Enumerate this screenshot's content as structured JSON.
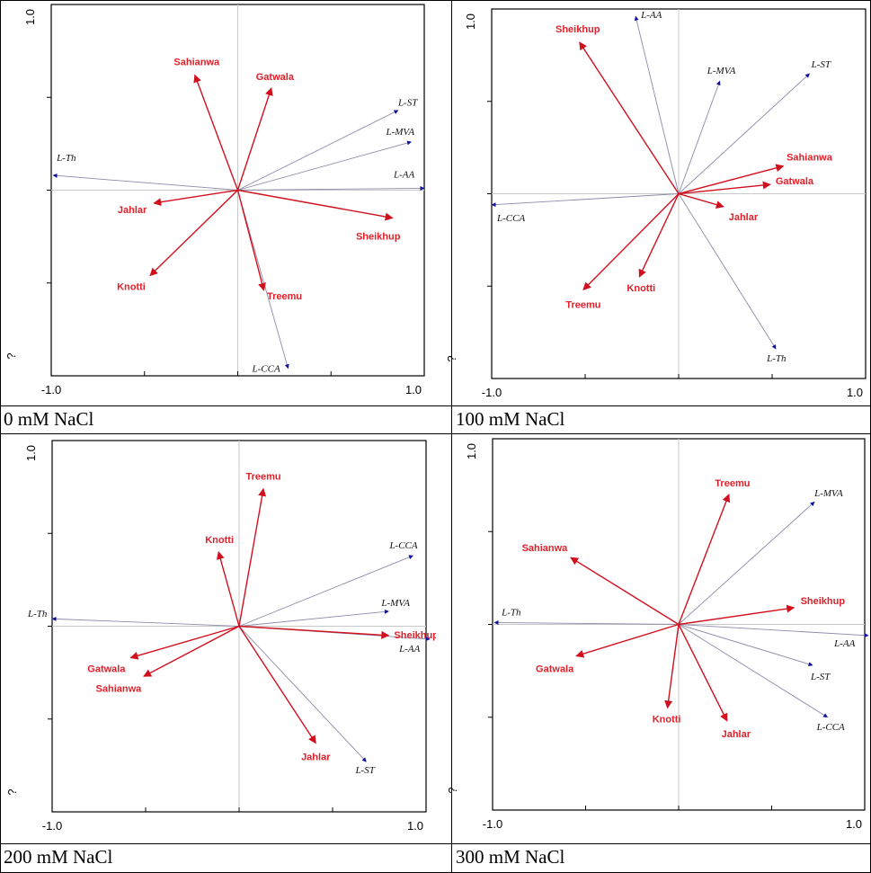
{
  "chart_data": [
    {
      "type": "biplot",
      "caption": "0 mM NaCl",
      "xlim": [
        -1.0,
        1.0
      ],
      "ylim": [
        -1.0,
        1.0
      ],
      "x_tick_labels": [
        "-1.0",
        "1.0"
      ],
      "y_tick_label": "1.0",
      "y_min_label": "?",
      "variables": [
        {
          "name": "L-ST",
          "x": 0.86,
          "y": 0.43
        },
        {
          "name": "L-MVA",
          "x": 0.93,
          "y": 0.26
        },
        {
          "name": "L-AA",
          "x": 1.0,
          "y": 0.01
        },
        {
          "name": "L-Th",
          "x": -0.99,
          "y": 0.08
        },
        {
          "name": "L-CCA",
          "x": 0.27,
          "y": -0.96
        }
      ],
      "genotypes": [
        {
          "name": "Sahianwa",
          "x": -0.23,
          "y": 0.62
        },
        {
          "name": "Gatwala",
          "x": 0.18,
          "y": 0.55
        },
        {
          "name": "Sheikhup",
          "x": 0.83,
          "y": -0.15
        },
        {
          "name": "Jahlar",
          "x": -0.45,
          "y": -0.07
        },
        {
          "name": "Knotti",
          "x": -0.47,
          "y": -0.46
        },
        {
          "name": "Treemu",
          "x": 0.14,
          "y": -0.54
        }
      ]
    },
    {
      "type": "biplot",
      "caption": "100 mM NaCl",
      "xlim": [
        -1.0,
        1.0
      ],
      "ylim": [
        -1.0,
        1.0
      ],
      "x_tick_labels": [
        "-1.0",
        "1.0"
      ],
      "y_tick_label": "1.0",
      "y_min_label": "?",
      "variables": [
        {
          "name": "L-AA",
          "x": -0.23,
          "y": 0.96
        },
        {
          "name": "L-MVA",
          "x": 0.22,
          "y": 0.61
        },
        {
          "name": "L-ST",
          "x": 0.7,
          "y": 0.65
        },
        {
          "name": "L-CCA",
          "x": -1.0,
          "y": -0.06
        },
        {
          "name": "L-Th",
          "x": 0.52,
          "y": -0.84
        }
      ],
      "genotypes": [
        {
          "name": "Sheikhup",
          "x": -0.53,
          "y": 0.82
        },
        {
          "name": "Sahianwa",
          "x": 0.56,
          "y": 0.15
        },
        {
          "name": "Gatwala",
          "x": 0.49,
          "y": 0.05
        },
        {
          "name": "Jahlar",
          "x": 0.24,
          "y": -0.07
        },
        {
          "name": "Knotti",
          "x": -0.21,
          "y": -0.45
        },
        {
          "name": "Treemu",
          "x": -0.51,
          "y": -0.52
        }
      ]
    },
    {
      "type": "biplot",
      "caption": "200 mM NaCl",
      "xlim": [
        -1.0,
        1.0
      ],
      "ylim": [
        -1.0,
        1.0
      ],
      "x_tick_labels": [
        "-1.0",
        "1.0"
      ],
      "y_tick_label": "1.0",
      "y_min_label": "?",
      "variables": [
        {
          "name": "L-CCA",
          "x": 0.93,
          "y": 0.38
        },
        {
          "name": "L-MVA",
          "x": 0.8,
          "y": 0.08
        },
        {
          "name": "L-AA",
          "x": 1.02,
          "y": -0.07
        },
        {
          "name": "L-Th",
          "x": -1.0,
          "y": 0.04
        },
        {
          "name": "L-ST",
          "x": 0.68,
          "y": -0.73
        }
      ],
      "genotypes": [
        {
          "name": "Treemu",
          "x": 0.13,
          "y": 0.74
        },
        {
          "name": "Knotti",
          "x": -0.11,
          "y": 0.4
        },
        {
          "name": "Sheikhup",
          "x": 0.8,
          "y": -0.05
        },
        {
          "name": "Gatwala",
          "x": -0.58,
          "y": -0.17
        },
        {
          "name": "Sahianwa",
          "x": -0.51,
          "y": -0.27
        },
        {
          "name": "Jahlar",
          "x": 0.41,
          "y": -0.63
        }
      ]
    },
    {
      "type": "biplot",
      "caption": "300 mM NaCl",
      "xlim": [
        -1.0,
        1.0
      ],
      "ylim": [
        -1.0,
        1.0
      ],
      "x_tick_labels": [
        "-1.0",
        "1.0"
      ],
      "y_tick_label": "1.0",
      "y_min_label": "?",
      "variables": [
        {
          "name": "L-MVA",
          "x": 0.73,
          "y": 0.66
        },
        {
          "name": "L-Th",
          "x": -0.99,
          "y": 0.01
        },
        {
          "name": "L-AA",
          "x": 1.02,
          "y": -0.06
        },
        {
          "name": "L-ST",
          "x": 0.72,
          "y": -0.22
        },
        {
          "name": "L-CCA",
          "x": 0.8,
          "y": -0.5
        }
      ],
      "genotypes": [
        {
          "name": "Treemu",
          "x": 0.27,
          "y": 0.7
        },
        {
          "name": "Sahianwa",
          "x": -0.58,
          "y": 0.36
        },
        {
          "name": "Sheikhup",
          "x": 0.62,
          "y": 0.09
        },
        {
          "name": "Gatwala",
          "x": -0.55,
          "y": -0.17
        },
        {
          "name": "Knotti",
          "x": -0.06,
          "y": -0.45
        },
        {
          "name": "Jahlar",
          "x": 0.26,
          "y": -0.52
        }
      ]
    }
  ],
  "colors": {
    "genotype_arrow": "#d1101e",
    "variable_arrow_line": "#8a8aa8",
    "variable_arrow_head": "#101099",
    "axis_line": "#c8c8c8",
    "frame": "#000000"
  }
}
